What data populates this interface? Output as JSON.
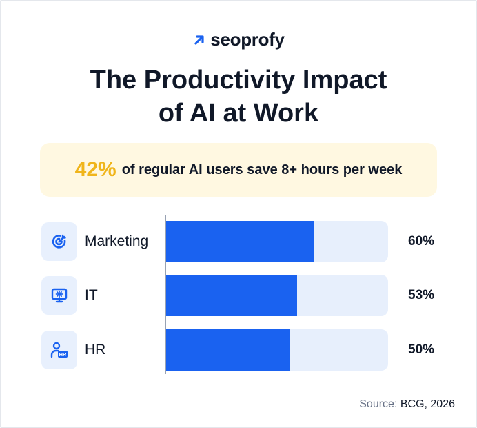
{
  "brand": {
    "name": "seoprofy",
    "icon": "arrow-up-right-icon",
    "accent": "#1a62f0"
  },
  "title": {
    "line1": "The Productivity Impact",
    "line2": "of AI at Work"
  },
  "callout": {
    "percent": "42%",
    "text": "of regular AI users save 8+ hours per week",
    "percent_color": "#f0b51b",
    "background": "#fff8e1"
  },
  "chart_data": {
    "type": "bar",
    "orientation": "horizontal",
    "categories": [
      "Marketing",
      "IT",
      "HR"
    ],
    "values": [
      60,
      53,
      50
    ],
    "value_labels": [
      "60%",
      "53%",
      "50%"
    ],
    "xlim": [
      0,
      90
    ],
    "icons": [
      "target-icon",
      "monitor-gear-icon",
      "hr-person-icon"
    ],
    "bar_color": "#1a62f0",
    "track_color": "#e7effc"
  },
  "source": {
    "label": "Source:",
    "value": "BCG, 2026"
  }
}
